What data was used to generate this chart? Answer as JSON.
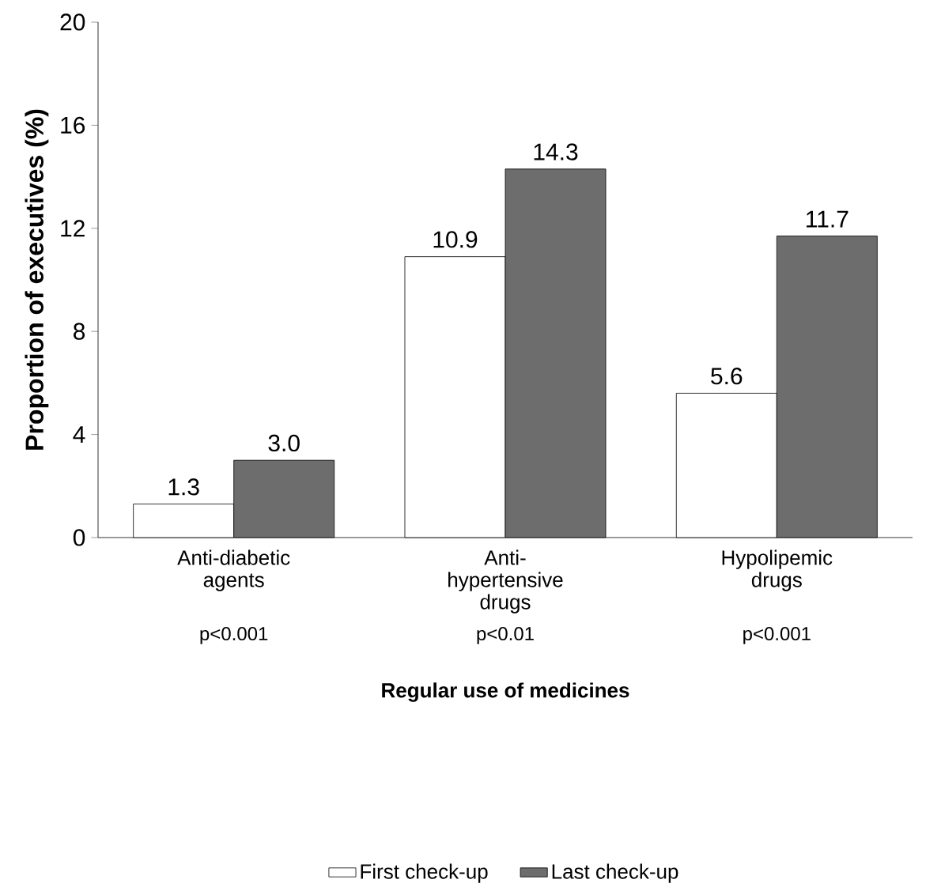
{
  "chart_data": {
    "type": "bar",
    "xlabel": "Regular use of medicines",
    "ylabel": "Proportion of executives (%)",
    "categories": [
      "Anti-diabetic agents",
      "Anti-hypertensive drugs",
      "Hypolipemic drugs"
    ],
    "series": [
      {
        "name": "First check-up",
        "color": "#ffffff",
        "values": [
          1.3,
          10.9,
          5.6
        ],
        "value_labels": [
          "1.3",
          "10.9",
          "5.6"
        ]
      },
      {
        "name": "Last check-up",
        "color": "#6d6d6d",
        "values": [
          3.0,
          14.3,
          11.7
        ],
        "value_labels": [
          "3.0",
          "14.3",
          "11.7"
        ]
      }
    ],
    "ylim": [
      0,
      20
    ],
    "yticks": [
      0,
      4,
      8,
      12,
      16,
      20
    ],
    "legend": "bottom",
    "grid": false,
    "annotations": [
      "p<0.001",
      "p<0.01",
      "p<0.001"
    ]
  }
}
